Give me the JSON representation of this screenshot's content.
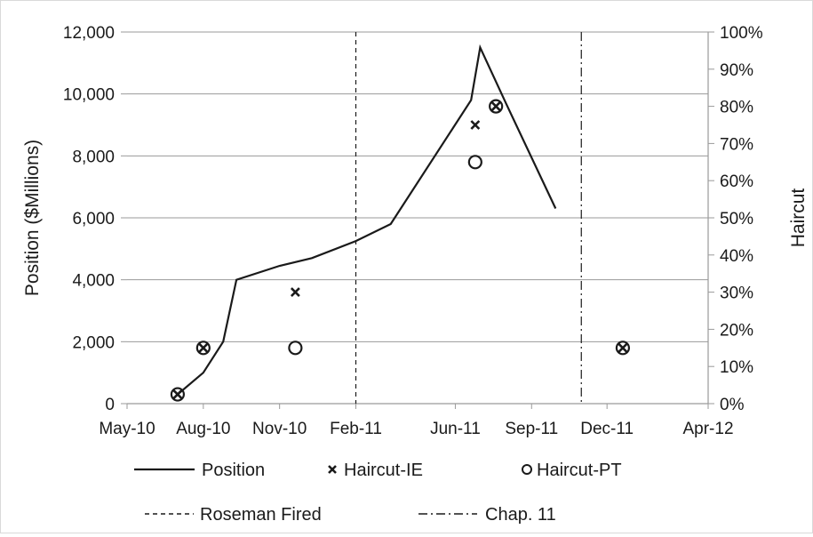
{
  "chart_data": {
    "type": "line",
    "title": "",
    "x_axis": {
      "label": "",
      "tick_labels": [
        "May-10",
        "Aug-10",
        "Nov-10",
        "Feb-11",
        "Jun-11",
        "Sep-11",
        "Dec-11",
        "Apr-12"
      ],
      "range": [
        "May-10",
        "Apr-12"
      ]
    },
    "y_axis_left": {
      "label": "Position ($Millions)",
      "range": [
        0,
        12000
      ],
      "tick_labels": [
        "0",
        "2,000",
        "4,000",
        "6,000",
        "8,000",
        "10,000",
        "12,000"
      ]
    },
    "y_axis_right": {
      "label": "Haircut",
      "range": [
        0,
        100
      ],
      "tick_labels": [
        "0%",
        "10%",
        "20%",
        "30%",
        "40%",
        "50%",
        "60%",
        "70%",
        "80%",
        "90%",
        "100%"
      ]
    },
    "grid": "horizontal",
    "legend_position": "bottom",
    "series": [
      {
        "name": "Position",
        "axis": "left",
        "style": "solid-line",
        "points": [
          {
            "x": "2010-07-01",
            "y": 300
          },
          {
            "x": "2010-08-01",
            "y": 1000
          },
          {
            "x": "2010-08-25",
            "y": 2000
          },
          {
            "x": "2010-09-10",
            "y": 4000
          },
          {
            "x": "2010-11-01",
            "y": 4450
          },
          {
            "x": "2010-12-10",
            "y": 4700
          },
          {
            "x": "2011-02-01",
            "y": 5250
          },
          {
            "x": "2011-03-15",
            "y": 5800
          },
          {
            "x": "2011-06-20",
            "y": 9800
          },
          {
            "x": "2011-07-01",
            "y": 11500
          },
          {
            "x": "2011-08-01",
            "y": 9700
          },
          {
            "x": "2011-09-30",
            "y": 6300
          }
        ]
      },
      {
        "name": "Haircut-IE",
        "axis": "right",
        "marker": "x",
        "points": [
          {
            "x": "2010-07-01",
            "y": 2.5
          },
          {
            "x": "2010-08-01",
            "y": 15
          },
          {
            "x": "2010-11-20",
            "y": 30
          },
          {
            "x": "2011-06-25",
            "y": 75
          },
          {
            "x": "2011-07-20",
            "y": 80
          },
          {
            "x": "2011-12-20",
            "y": 15
          }
        ]
      },
      {
        "name": "Haircut-PT",
        "axis": "right",
        "marker": "circle",
        "points": [
          {
            "x": "2010-07-01",
            "y": 2.5
          },
          {
            "x": "2010-08-01",
            "y": 15
          },
          {
            "x": "2010-11-20",
            "y": 15
          },
          {
            "x": "2011-06-25",
            "y": 65
          },
          {
            "x": "2011-07-20",
            "y": 80
          },
          {
            "x": "2011-12-20",
            "y": 15
          }
        ]
      }
    ],
    "events": [
      {
        "name": "Roseman Fired",
        "x": "2011-02-01",
        "style": "dashed"
      },
      {
        "name": "Chap. 11",
        "x": "2011-10-31",
        "style": "dash-dot"
      }
    ],
    "colors": {
      "ink": "#1a1a1a",
      "grid": "#9a9a9a"
    }
  }
}
